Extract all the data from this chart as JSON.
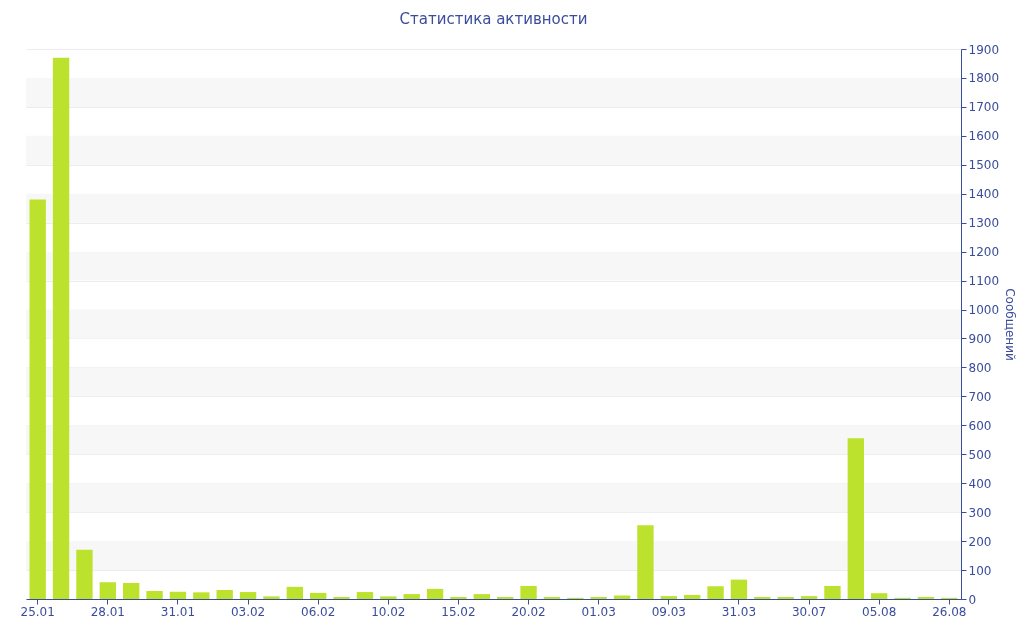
{
  "chart_data": {
    "type": "bar",
    "title": "Статистика активности",
    "ylabel": "Сообщений",
    "categories": [
      "25.01",
      null,
      null,
      "28.01",
      null,
      null,
      "31.01",
      null,
      null,
      "03.02",
      null,
      null,
      "06.02",
      null,
      null,
      "10.02",
      null,
      null,
      "15.02",
      null,
      null,
      "20.02",
      null,
      null,
      "01.03",
      null,
      null,
      "09.03",
      null,
      null,
      "31.03",
      null,
      null,
      "30.07",
      null,
      null,
      "05.08",
      null,
      null,
      "26.08"
    ],
    "values": [
      1380,
      1870,
      170,
      58,
      55,
      28,
      25,
      23,
      31,
      24,
      9,
      42,
      21,
      7,
      24,
      9,
      17,
      35,
      7,
      17,
      7,
      45,
      7,
      4,
      7,
      12,
      255,
      10,
      14,
      44,
      67,
      7,
      7,
      10,
      45,
      555,
      20,
      4,
      7,
      4
    ],
    "color": "#bde22e",
    "ylim": [
      0,
      1900
    ],
    "yticks": [
      0,
      100,
      200,
      300,
      400,
      500,
      600,
      700,
      800,
      900,
      1000,
      1100,
      1200,
      1300,
      1400,
      1500,
      1600,
      1700,
      1800,
      1900
    ],
    "grid": "y"
  }
}
